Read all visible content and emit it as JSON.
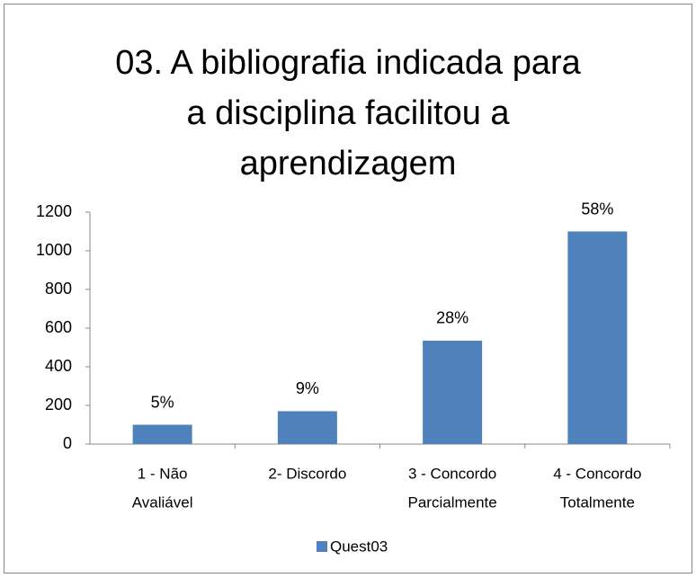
{
  "chart_data": {
    "type": "bar",
    "title": [
      "03. A bibliografia indicada para",
      "a disciplina facilitou a",
      "aprendizagem"
    ],
    "categories": [
      [
        "1 -  Não",
        "Avaliável"
      ],
      [
        "2- Discordo"
      ],
      [
        "3 - Concordo",
        "Parcialmente"
      ],
      [
        "4 - Concordo",
        "Totalmente"
      ]
    ],
    "series": [
      {
        "name": "Quest03",
        "color": "#4f81bd",
        "values": [
          100,
          170,
          535,
          1100
        ],
        "value_labels": [
          "5%",
          "9%",
          "28%",
          "58%"
        ]
      }
    ],
    "ylim": [
      0,
      1200
    ],
    "yticks": [
      0,
      200,
      400,
      600,
      800,
      1000,
      1200
    ],
    "grid": false,
    "legend": "bottom"
  }
}
